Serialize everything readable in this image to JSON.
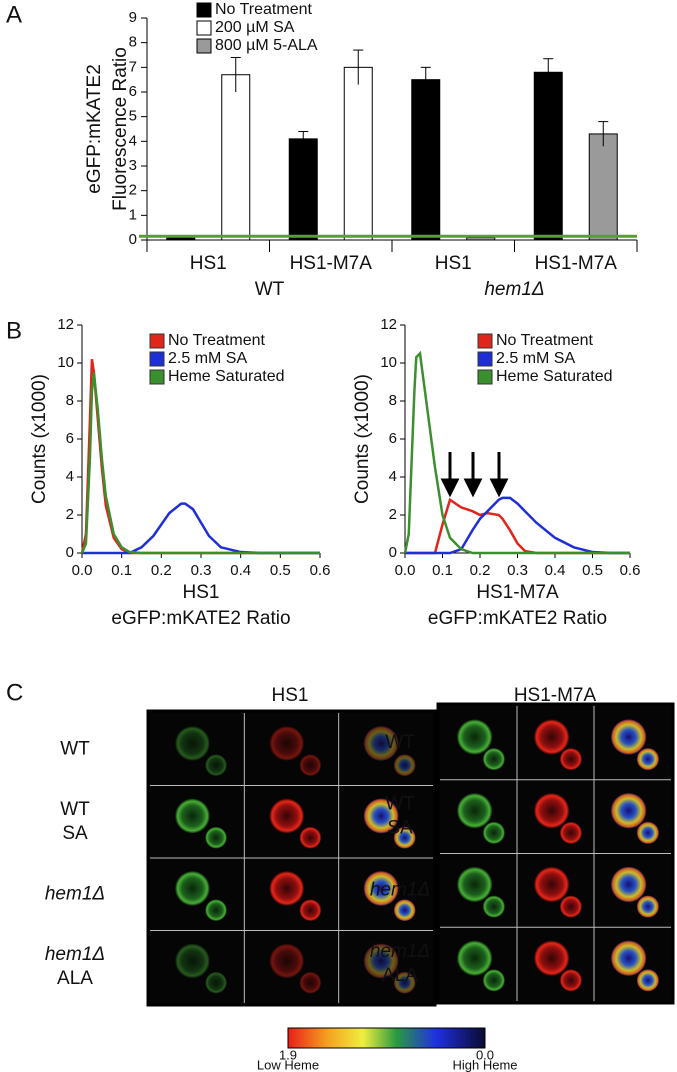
{
  "panels": [
    "A",
    "B",
    "C"
  ],
  "chart_data": [
    {
      "type": "bar",
      "ylabel": [
        "eGFP:mKATE2",
        "Fluorescence Ratio"
      ],
      "categories": [
        "HS1",
        "HS1-M7A",
        "HS1",
        "HS1-M7A"
      ],
      "groups": [
        {
          "label": "WT",
          "italic": false
        },
        {
          "label": "hem1Δ",
          "italic": true
        }
      ],
      "series": [
        {
          "name": "No Treatment",
          "color": "#000000",
          "values": [
            0.1,
            4.1,
            6.5,
            6.8
          ],
          "errors": [
            null,
            0.3,
            0.5,
            0.55
          ]
        },
        {
          "name": "200 µM SA",
          "color": "#ffffff",
          "values": [
            6.7,
            7.0,
            null,
            null
          ],
          "errors": [
            0.7,
            0.7,
            null,
            null
          ]
        },
        {
          "name": "800 µM 5-ALA",
          "color": "#9a9a9a",
          "values": [
            null,
            null,
            0.1,
            4.3
          ],
          "errors": [
            null,
            null,
            null,
            0.5
          ]
        }
      ],
      "reference_line": {
        "value": 0.15,
        "color": "#5a9e2f"
      },
      "ylim": [
        0,
        9
      ],
      "yticks": [
        0,
        1,
        2,
        3,
        4,
        5,
        6,
        7,
        8,
        9
      ]
    },
    {
      "type": "line",
      "xlabel": [
        "HS1",
        "eGFP:mKATE2 Ratio"
      ],
      "ylabel": "Counts (x1000)",
      "x": [
        0,
        0.01,
        0.02,
        0.025,
        0.03,
        0.04,
        0.05,
        0.06,
        0.08,
        0.1,
        0.12,
        0.15,
        0.18,
        0.2,
        0.22,
        0.25,
        0.26,
        0.28,
        0.3,
        0.32,
        0.35,
        0.4,
        0.45,
        0.5,
        0.55,
        0.6
      ],
      "series": [
        {
          "name": "No Treatment",
          "color": "#e0251b",
          "values": [
            0,
            1,
            7,
            10.2,
            9.5,
            7,
            4.5,
            2.5,
            0.8,
            0.2,
            0,
            0,
            0,
            0,
            0,
            0,
            0,
            0,
            0,
            0,
            0,
            0,
            0,
            0,
            0,
            0
          ]
        },
        {
          "name": "2.5 mM SA",
          "color": "#1f2fd6",
          "values": [
            0,
            0,
            0,
            0,
            0,
            0,
            0,
            0,
            0,
            0,
            0,
            0.3,
            0.9,
            1.5,
            2.1,
            2.6,
            2.6,
            2.3,
            1.6,
            0.9,
            0.3,
            0.05,
            0,
            0,
            0,
            0
          ]
        },
        {
          "name": "Heme Saturated",
          "color": "#3c8f2e",
          "values": [
            0,
            0.5,
            5,
            8.5,
            9.5,
            7.5,
            5,
            3,
            1,
            0.3,
            0.05,
            0,
            0,
            0,
            0,
            0,
            0,
            0,
            0,
            0,
            0,
            0,
            0,
            0,
            0,
            0
          ]
        }
      ],
      "xlim": [
        0,
        0.6
      ],
      "xticks": [
        {
          "value": 0,
          "label": "0.0"
        },
        0.1,
        0.2,
        0.3,
        0.4,
        0.5,
        0.6
      ],
      "ylim": [
        0,
        12
      ],
      "yticks": [
        0,
        2,
        4,
        6,
        8,
        10,
        12
      ]
    },
    {
      "type": "line",
      "xlabel": [
        "HS1-M7A",
        "eGFP:mKATE2 Ratio"
      ],
      "ylabel": "Counts (x1000)",
      "x": [
        0,
        0.01,
        0.02,
        0.025,
        0.03,
        0.04,
        0.05,
        0.06,
        0.08,
        0.1,
        0.12,
        0.15,
        0.18,
        0.2,
        0.22,
        0.25,
        0.26,
        0.28,
        0.3,
        0.32,
        0.35,
        0.4,
        0.45,
        0.5,
        0.55,
        0.6
      ],
      "series": [
        {
          "name": "No Treatment",
          "color": "#e0251b",
          "values": [
            0,
            0,
            0,
            0,
            0,
            0,
            0,
            0,
            0,
            1.5,
            2.8,
            2.4,
            2.2,
            2.0,
            2.1,
            2.0,
            1.8,
            1.2,
            0.5,
            0.1,
            0,
            0,
            0,
            0,
            0,
            0
          ]
        },
        {
          "name": "2.5 mM SA",
          "color": "#1f2fd6",
          "values": [
            0,
            0,
            0,
            0,
            0,
            0,
            0,
            0,
            0,
            0,
            0,
            0.2,
            1.2,
            1.8,
            2.2,
            2.8,
            2.9,
            2.9,
            2.6,
            2.2,
            1.6,
            0.8,
            0.3,
            0.05,
            0,
            0
          ]
        },
        {
          "name": "Heme Saturated",
          "color": "#3c8f2e",
          "values": [
            0,
            1,
            6,
            8.5,
            10.3,
            10.5,
            9,
            7.5,
            4.5,
            2,
            0.8,
            0.2,
            0,
            0,
            0,
            0,
            0,
            0,
            0,
            0,
            0,
            0,
            0,
            0,
            0,
            0
          ]
        }
      ],
      "xlim": [
        0,
        0.6
      ],
      "xticks": [
        {
          "value": 0,
          "label": "0.0"
        },
        0.1,
        0.2,
        0.3,
        0.4,
        0.5,
        0.6
      ],
      "ylim": [
        0,
        12
      ],
      "yticks": [
        0,
        2,
        4,
        6,
        8,
        10,
        12
      ]
    }
  ],
  "panel_c": {
    "columns": [
      "HS1",
      "HS1-M7A"
    ],
    "rows": [
      {
        "lines": [
          "WT"
        ],
        "italic": [
          false
        ]
      },
      {
        "lines": [
          "WT",
          "SA"
        ],
        "italic": [
          false,
          false
        ]
      },
      {
        "lines": [
          "hem1Δ"
        ],
        "italic": [
          true
        ]
      },
      {
        "lines": [
          "hem1Δ",
          "ALA"
        ],
        "italic": [
          true,
          false
        ]
      }
    ],
    "colorbar": {
      "max_label": "1.9",
      "min_label": "0.0",
      "low_label": "Low Heme",
      "high_label": "High Heme"
    }
  }
}
